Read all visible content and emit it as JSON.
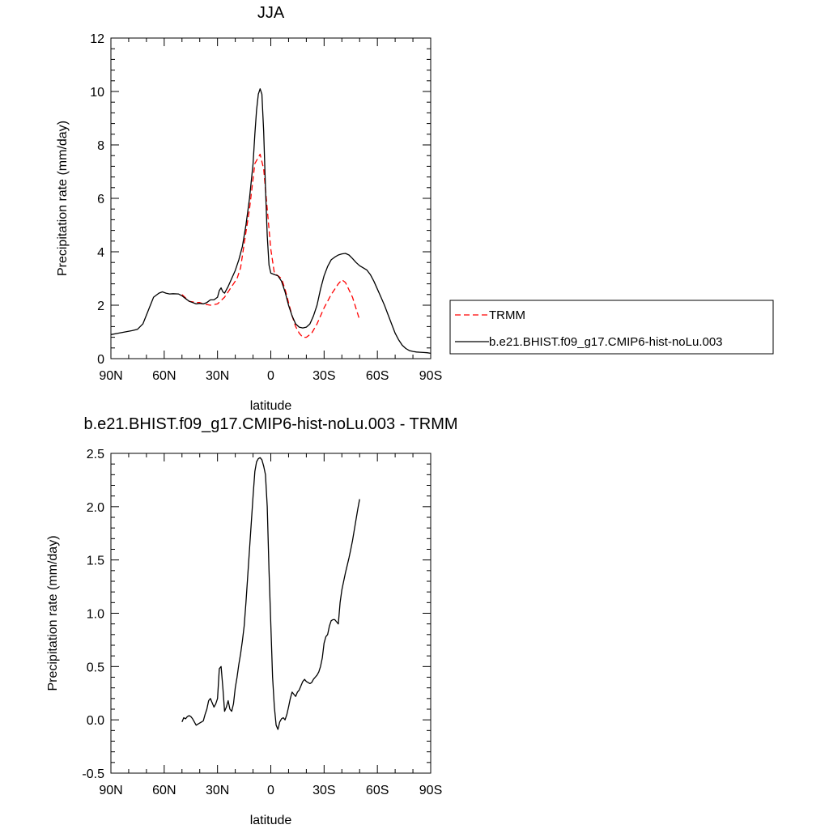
{
  "chart_data": [
    {
      "type": "line",
      "title": "JJA",
      "xlabel": "latitude",
      "ylabel": "Precipitation rate (mm/day)",
      "xlim": [
        90,
        -90
      ],
      "ylim": [
        0,
        12
      ],
      "x_ticks": [
        90,
        60,
        30,
        0,
        -30,
        -60,
        -90
      ],
      "x_tick_labels": [
        "90N",
        "60N",
        "30N",
        "0",
        "30S",
        "60S",
        "90S"
      ],
      "y_ticks": [
        0,
        2,
        4,
        6,
        8,
        10,
        12
      ],
      "y_tick_labels": [
        "0",
        "2",
        "4",
        "6",
        "8",
        "10",
        "12"
      ],
      "legend": {
        "placement": "right",
        "entries": [
          "TRMM",
          "b.e21.BHIST.f09_g17.CMIP6-hist-noLu.003"
        ]
      },
      "series": [
        {
          "name": "TRMM",
          "color": "#ff0000",
          "dash": "dashed",
          "x": [
            50,
            46,
            42,
            40,
            38,
            34,
            30,
            26,
            22,
            19,
            17,
            15,
            12,
            9,
            6,
            4,
            2,
            0,
            -2,
            -4,
            -6,
            -8,
            -10,
            -12,
            -14,
            -16,
            -18,
            -20,
            -23,
            -26,
            -30,
            -34,
            -38,
            -40,
            -42,
            -46,
            -50
          ],
          "y": [
            2.4,
            2.15,
            2.1,
            2.1,
            2.05,
            2.0,
            2.05,
            2.3,
            2.7,
            3.0,
            3.4,
            4.3,
            5.6,
            7.3,
            7.65,
            7.1,
            5.6,
            4.1,
            3.2,
            3.1,
            3.0,
            2.6,
            2.1,
            1.6,
            1.2,
            0.95,
            0.8,
            0.8,
            0.95,
            1.3,
            1.9,
            2.4,
            2.8,
            2.95,
            2.85,
            2.3,
            1.45
          ]
        },
        {
          "name": "b.e21.BHIST.f09_g17.CMIP6-hist-noLu.003",
          "color": "#000000",
          "dash": "solid",
          "x": [
            90,
            86,
            82,
            78,
            75,
            72,
            69,
            66,
            63,
            61,
            59,
            57,
            55,
            52,
            50,
            48,
            46,
            44,
            42,
            40,
            38,
            36,
            34,
            32,
            30,
            29,
            28,
            27,
            26,
            24,
            22,
            20,
            18,
            16,
            14,
            12,
            10,
            9,
            8,
            7,
            6,
            5,
            4,
            3,
            2,
            1,
            0,
            -2,
            -4,
            -6,
            -8,
            -10,
            -12,
            -14,
            -16,
            -18,
            -20,
            -22,
            -24,
            -26,
            -28,
            -30,
            -32,
            -34,
            -36,
            -38,
            -40,
            -42,
            -44,
            -46,
            -48,
            -50,
            -52,
            -54,
            -56,
            -58,
            -60,
            -62,
            -64,
            -66,
            -68,
            -70,
            -72,
            -74,
            -76,
            -78,
            -80,
            -82,
            -84,
            -86,
            -88,
            -90
          ],
          "y": [
            0.9,
            0.95,
            1.0,
            1.05,
            1.1,
            1.3,
            1.8,
            2.3,
            2.45,
            2.5,
            2.45,
            2.42,
            2.43,
            2.42,
            2.35,
            2.25,
            2.15,
            2.1,
            2.05,
            2.07,
            2.05,
            2.1,
            2.2,
            2.2,
            2.3,
            2.55,
            2.65,
            2.5,
            2.45,
            2.7,
            3.0,
            3.3,
            3.7,
            4.2,
            5.0,
            6.0,
            7.3,
            8.4,
            9.3,
            9.9,
            10.1,
            9.9,
            8.5,
            6.4,
            4.6,
            3.5,
            3.2,
            3.15,
            3.1,
            2.9,
            2.5,
            2.0,
            1.6,
            1.3,
            1.18,
            1.15,
            1.18,
            1.3,
            1.6,
            2.0,
            2.6,
            3.1,
            3.45,
            3.7,
            3.8,
            3.88,
            3.92,
            3.94,
            3.88,
            3.75,
            3.6,
            3.48,
            3.4,
            3.32,
            3.15,
            2.9,
            2.6,
            2.3,
            2.0,
            1.65,
            1.3,
            0.95,
            0.7,
            0.5,
            0.38,
            0.3,
            0.27,
            0.25,
            0.24,
            0.23,
            0.22,
            0.2
          ]
        }
      ]
    },
    {
      "type": "line",
      "title": "b.e21.BHIST.f09_g17.CMIP6-hist-noLu.003 - TRMM",
      "xlabel": "latitude",
      "ylabel": "Precipitation rate (mm/day)",
      "xlim": [
        90,
        -90
      ],
      "ylim": [
        -0.5,
        2.5
      ],
      "x_ticks": [
        90,
        60,
        30,
        0,
        -30,
        -60,
        -90
      ],
      "x_tick_labels": [
        "90N",
        "60N",
        "30N",
        "0",
        "30S",
        "60S",
        "90S"
      ],
      "y_ticks": [
        -0.5,
        0.0,
        0.5,
        1.0,
        1.5,
        2.0,
        2.5
      ],
      "y_tick_labels": [
        "-0.5",
        "0.0",
        "0.5",
        "1.0",
        "1.5",
        "2.0",
        "2.5"
      ],
      "series": [
        {
          "color": "#000000",
          "dash": "solid",
          "x": [
            50,
            49,
            48,
            47,
            46,
            45,
            44,
            43,
            42,
            41,
            40,
            39,
            38,
            37,
            36,
            35,
            34,
            33,
            32,
            31,
            30,
            29,
            28,
            27,
            26,
            25,
            24,
            23,
            22,
            21,
            20,
            19,
            18,
            17,
            16,
            15,
            14,
            13,
            12,
            11,
            10,
            9,
            8,
            7,
            6,
            5,
            4,
            3,
            2,
            1,
            0,
            -1,
            -2,
            -3,
            -4,
            -5,
            -6,
            -7,
            -8,
            -9,
            -10,
            -11,
            -12,
            -13,
            -14,
            -15,
            -16,
            -17,
            -18,
            -19,
            -20,
            -21,
            -22,
            -23,
            -24,
            -25,
            -26,
            -27,
            -28,
            -29,
            -30,
            -31,
            -32,
            -33,
            -34,
            -35,
            -36,
            -37,
            -38,
            -39,
            -40,
            -41,
            -42,
            -43,
            -44,
            -45,
            -46,
            -47,
            -48,
            -49,
            -50
          ],
          "y": [
            -0.02,
            0.02,
            0.01,
            0.03,
            0.04,
            0.03,
            0.01,
            -0.02,
            -0.05,
            -0.04,
            -0.03,
            -0.02,
            -0.01,
            0.05,
            0.1,
            0.18,
            0.2,
            0.16,
            0.12,
            0.15,
            0.2,
            0.48,
            0.5,
            0.3,
            0.08,
            0.12,
            0.18,
            0.1,
            0.08,
            0.15,
            0.3,
            0.4,
            0.52,
            0.62,
            0.74,
            0.88,
            1.1,
            1.35,
            1.6,
            1.85,
            2.1,
            2.33,
            2.42,
            2.45,
            2.46,
            2.44,
            2.38,
            2.3,
            2.0,
            1.4,
            0.9,
            0.4,
            0.12,
            -0.05,
            -0.09,
            -0.02,
            0.01,
            0.02,
            0.0,
            0.05,
            0.12,
            0.2,
            0.26,
            0.24,
            0.22,
            0.26,
            0.28,
            0.32,
            0.36,
            0.38,
            0.36,
            0.35,
            0.34,
            0.35,
            0.38,
            0.4,
            0.42,
            0.45,
            0.5,
            0.58,
            0.72,
            0.78,
            0.8,
            0.88,
            0.93,
            0.94,
            0.94,
            0.92,
            0.9,
            1.1,
            1.22,
            1.3,
            1.38,
            1.45,
            1.52,
            1.6,
            1.68,
            1.78,
            1.88,
            1.98,
            2.07
          ]
        }
      ]
    }
  ]
}
